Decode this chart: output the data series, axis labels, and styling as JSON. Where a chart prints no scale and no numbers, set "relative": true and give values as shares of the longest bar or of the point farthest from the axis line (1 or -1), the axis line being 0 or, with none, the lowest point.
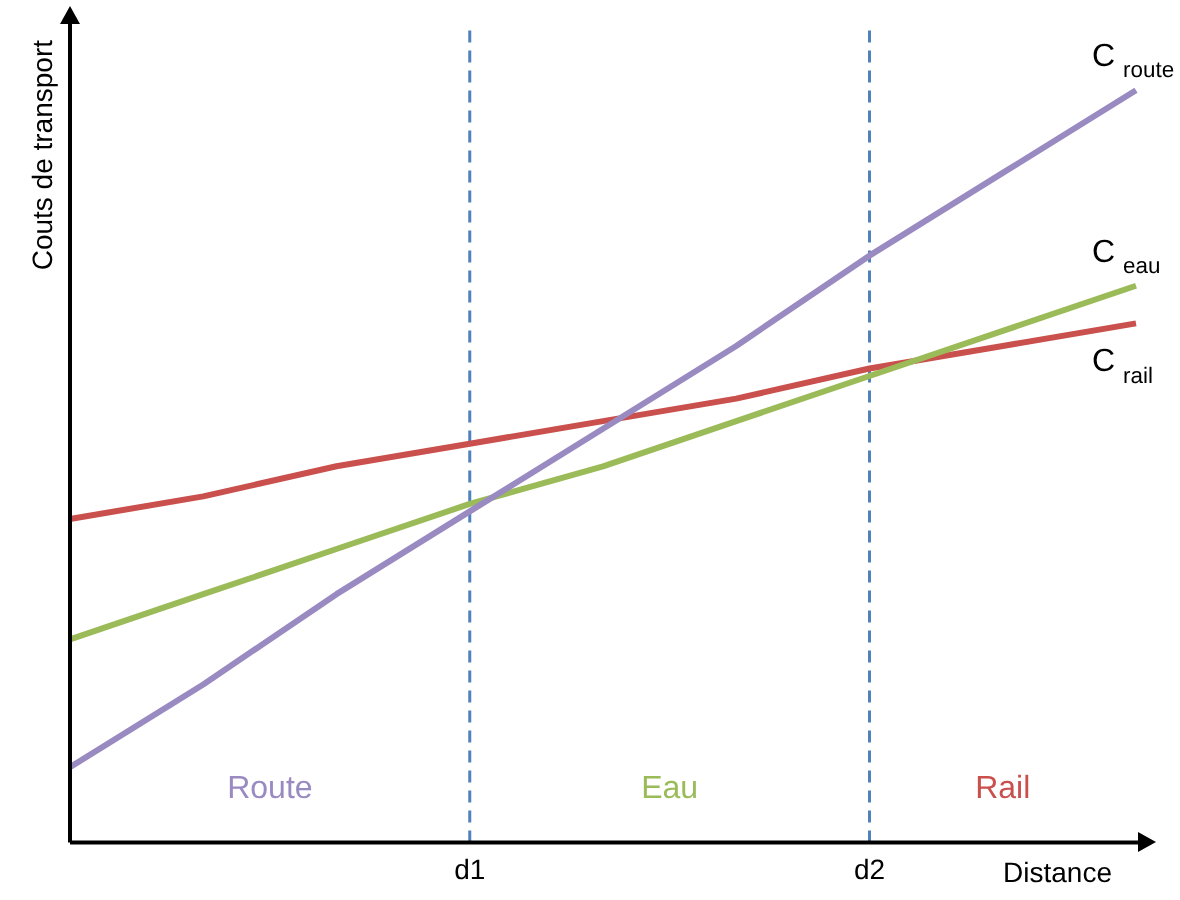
{
  "chart_data": {
    "type": "line",
    "relative": true,
    "xlabel": "Distance",
    "ylabel": "Couts de transport",
    "categories": [
      null,
      null,
      null,
      "d1",
      null,
      null,
      "d2",
      null,
      null
    ],
    "series": [
      {
        "name": "C$_{route}$",
        "color": "#9a8ac2",
        "values": [
          0.1,
          0.21,
          0.33,
          0.44,
          0.55,
          0.66,
          0.78,
          0.89,
          1
        ]
      },
      {
        "name": "C$_{eau}$",
        "color": "#9bbb59",
        "values": [
          0.27,
          0.33,
          0.39,
          0.45,
          0.5,
          0.56,
          0.62,
          0.68,
          0.74
        ]
      },
      {
        "name": "C$_{rail}$",
        "color": "#c9504d",
        "values": [
          0.43,
          0.46,
          0.5,
          0.53,
          0.56,
          0.59,
          0.63,
          0.66,
          0.69
        ]
      }
    ],
    "ref_lines": [
      {
        "axis": "x",
        "value": "d1",
        "color": "#4f81bd",
        "line_style": "dashed"
      },
      {
        "axis": "x",
        "value": "d2",
        "color": "#4f81bd",
        "line_style": "dashed"
      }
    ],
    "annotations": [
      "Route",
      "Eau",
      "Rail"
    ],
    "grid": false,
    "legend": false,
    "marker": "none",
    "line_style": "solid"
  }
}
